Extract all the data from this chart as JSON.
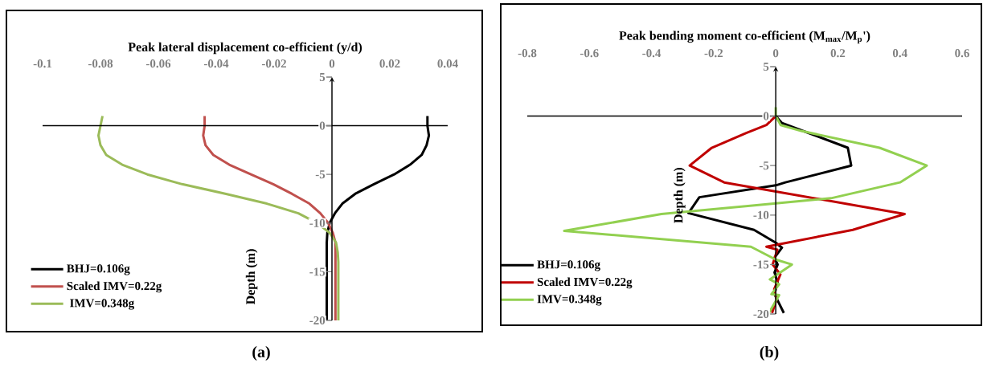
{
  "chart_data": [
    {
      "type": "line",
      "xlabel": "Peak lateral displacement co-efficient (y/d)",
      "ylabel": "Depth (m)",
      "xlim": [
        -0.1,
        0.04
      ],
      "ylim": [
        -20,
        5
      ],
      "xticks": [
        -0.1,
        -0.08,
        -0.06,
        -0.04,
        -0.02,
        0,
        0.02,
        0.04
      ],
      "yticks": [
        -20,
        -15,
        -10,
        -5,
        0,
        5
      ],
      "legend": "bottom left",
      "annotations": [
        "(a)"
      ],
      "series": [
        {
          "name": "BHJ=0.106g",
          "color": "#000000",
          "x": [
            0.033,
            0.033,
            0.0335,
            0.0327,
            0.031,
            0.027,
            0.0215,
            0.0145,
            0.008,
            0.0036,
            0.001,
            -0.0008,
            -0.0016,
            -0.0018,
            -0.0018
          ],
          "values": [
            1,
            0,
            -1,
            -2,
            -3,
            -4,
            -5,
            -6,
            -7,
            -8,
            -9,
            -10,
            -11,
            -12,
            -20
          ]
        },
        {
          "name": "Scaled IMV=0.22g",
          "color": "#c0504d",
          "x": [
            -0.044,
            -0.044,
            -0.0445,
            -0.0437,
            -0.041,
            -0.0355,
            -0.028,
            -0.0203,
            -0.0138,
            -0.0078,
            -0.004,
            -0.0013,
            0.0003,
            0.0012,
            0.0012
          ],
          "values": [
            1,
            0,
            -1,
            -2,
            -3,
            -4,
            -5,
            -6,
            -7,
            -8,
            -9,
            -10,
            -11,
            -12,
            -20
          ]
        },
        {
          "name": " IMV=0.348g",
          "color": "#9bbb59",
          "x": [
            -0.0793,
            -0.08,
            -0.0807,
            -0.08,
            -0.078,
            -0.0725,
            -0.0638,
            -0.0518,
            -0.0366,
            -0.0225,
            -0.0116,
            -0.0051,
            -0.0008,
            0.0014,
            0.002,
            0.0022,
            0.0022
          ],
          "values": [
            1,
            0,
            -1,
            -2,
            -3,
            -4,
            -5,
            -6,
            -7,
            -8,
            -9,
            -10,
            -11,
            -12,
            -13,
            -14,
            -20
          ]
        }
      ]
    },
    {
      "type": "line",
      "xlabel": "Peak bending moment co-efficient (M$_{max}$/M$_{p}$')",
      "ylabel": "Depth (m)",
      "xlim": [
        -0.8,
        0.6
      ],
      "ylim": [
        -20,
        5
      ],
      "xticks": [
        -0.8,
        -0.6,
        -0.4,
        -0.2,
        0,
        0.2,
        0.4,
        0.6
      ],
      "yticks": [
        -20,
        -15,
        -10,
        -5,
        0,
        5
      ],
      "legend": "bottom left",
      "annotations": [
        "(b)"
      ],
      "series": [
        {
          "name": "BHJ=0.106g",
          "color": "#000000",
          "x": [
            0,
            0.02,
            0.232,
            0.243,
            0.031,
            0,
            -0.246,
            -0.281,
            -0.07,
            0,
            0.02,
            -0.004,
            0.006,
            -0.004,
            0.006,
            -0.004,
            0.026
          ],
          "values": [
            0,
            -0.7,
            -3.2,
            -5,
            -6.7,
            -7,
            -8.2,
            -9.8,
            -11.5,
            -12.8,
            -13.3,
            -14.3,
            -15,
            -15.8,
            -16.8,
            -18,
            -19.9
          ]
        },
        {
          "name": "Scaled IMV=0.22g",
          "color": "#c00000",
          "x": [
            0,
            -0.03,
            -0.095,
            -0.206,
            -0.277,
            -0.166,
            0.415,
            0.248,
            -0.03,
            0.005,
            -0.01,
            0.015,
            -0.005,
            0.003,
            -0.012
          ],
          "values": [
            0,
            -0.9,
            -1.7,
            -3.2,
            -5,
            -6.7,
            -9.9,
            -11.5,
            -13.2,
            -13.5,
            -15,
            -16,
            -17.5,
            -18.5,
            -19.9
          ]
        },
        {
          "name": "IMV=0.348g",
          "color": "#92d050",
          "x": [
            0,
            0,
            0.016,
            0.082,
            0.334,
            0.486,
            0.4,
            0.178,
            -0.368,
            -0.681,
            -0.08,
            0,
            0.052,
            -0.019,
            0.011,
            -0.014,
            0.011,
            -0.024
          ],
          "values": [
            0.9,
            0,
            -0.9,
            -1.5,
            -3.2,
            -5,
            -6.7,
            -8.3,
            -9.9,
            -11.6,
            -13.2,
            -14.5,
            -15,
            -16.5,
            -17,
            -18,
            -18.1,
            -20
          ]
        }
      ]
    }
  ]
}
